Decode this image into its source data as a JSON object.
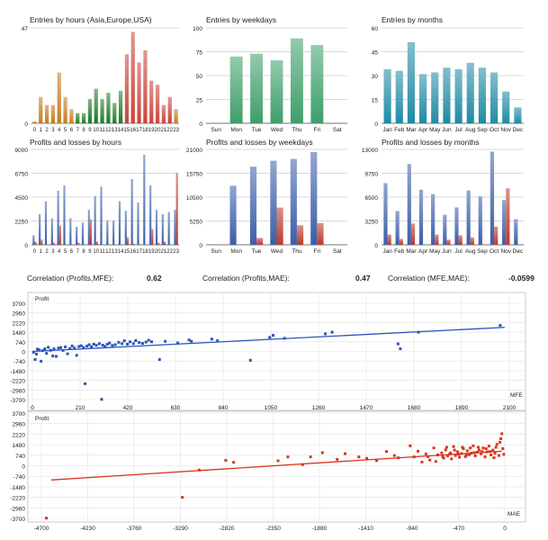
{
  "colors": {
    "grid": "#cccccc",
    "axis": "#555555",
    "text": "#222222",
    "frame": "#bfbfbf"
  },
  "correlation": {
    "items": [
      {
        "label": "Correlation (Profits,MFE):",
        "value": "0.62"
      },
      {
        "label": "Correlation (Profits,MAE):",
        "value": "0.47"
      },
      {
        "label": "Correlation (MFE,MAE):",
        "value": "-0.0599"
      }
    ]
  },
  "chart_data": [
    {
      "id": "entries-hours",
      "type": "bar",
      "title": "Entries by hours (Asia,Europe,USA)",
      "categories": [
        "0",
        "1",
        "2",
        "3",
        "4",
        "5",
        "6",
        "7",
        "8",
        "9",
        "10",
        "11",
        "12",
        "13",
        "14",
        "15",
        "16",
        "17",
        "18",
        "19",
        "20",
        "21",
        "22",
        "23"
      ],
      "values": [
        1,
        13,
        9,
        9,
        25,
        13,
        7,
        5,
        5,
        12,
        17,
        12,
        15,
        10,
        16,
        34,
        45,
        30,
        36,
        21,
        19,
        9,
        13,
        7
      ],
      "colors": [
        "#c77a1b",
        "#c77a1b",
        "#c77a1b",
        "#c77a1b",
        "#c77a1b",
        "#c77a1b",
        "#c77a1b",
        "#1e7a28",
        "#1e7a28",
        "#1e7a28",
        "#1e7a28",
        "#1e7a28",
        "#1e7a28",
        "#1e7a28",
        "#1e7a28",
        "#c9443a",
        "#c9443a",
        "#c9443a",
        "#c9443a",
        "#c9443a",
        "#c9443a",
        "#c9443a",
        "#c9443a",
        "#c77a1b"
      ],
      "yticks": [
        0,
        47
      ],
      "ylim": [
        0,
        47
      ]
    },
    {
      "id": "entries-weekdays",
      "type": "bar",
      "title": "Entries by weekdays",
      "categories": [
        "Sun",
        "Mon",
        "Tue",
        "Wed",
        "Thu",
        "Fri",
        "Sat"
      ],
      "values": [
        0,
        70,
        73,
        66,
        89,
        82,
        0
      ],
      "color": "#3d9e6a",
      "yticks": [
        0,
        25,
        50,
        75,
        100
      ],
      "ylim": [
        0,
        100
      ]
    },
    {
      "id": "entries-months",
      "type": "bar",
      "title": "Entries by months",
      "categories": [
        "Jan",
        "Feb",
        "Mar",
        "Apr",
        "May",
        "Jun",
        "Jul",
        "Aug",
        "Sep",
        "Oct",
        "Nov",
        "Dec"
      ],
      "values": [
        34,
        33,
        51,
        31,
        32,
        35,
        34,
        38,
        35,
        32,
        20,
        10
      ],
      "color": "#1f8aa4",
      "yticks": [
        0,
        15,
        30,
        45,
        60
      ],
      "ylim": [
        0,
        60
      ]
    },
    {
      "id": "pl-hours",
      "type": "bar",
      "title": "Profits and losses by hours",
      "categories": [
        "0",
        "1",
        "2",
        "3",
        "4",
        "5",
        "6",
        "7",
        "8",
        "9",
        "10",
        "11",
        "12",
        "13",
        "14",
        "15",
        "16",
        "17",
        "18",
        "19",
        "20",
        "21",
        "22",
        "23"
      ],
      "series": [
        {
          "name": "Profits",
          "color": "#3b5ea8",
          "values": [
            900,
            2900,
            4100,
            2500,
            5100,
            5600,
            2500,
            1700,
            2100,
            3300,
            4600,
            5500,
            2300,
            2300,
            4100,
            3200,
            6200,
            4000,
            8500,
            5600,
            3300,
            2900,
            3100,
            3300
          ]
        },
        {
          "name": "Losses",
          "color": "#b83a2c",
          "values": [
            300,
            500,
            0,
            200,
            1800,
            0,
            0,
            200,
            0,
            2400,
            300,
            0,
            0,
            0,
            0,
            700,
            100,
            0,
            0,
            1500,
            200,
            300,
            0,
            6800
          ]
        }
      ],
      "yticks": [
        0,
        2250,
        4500,
        6750,
        9000
      ],
      "ylim": [
        0,
        9000
      ]
    },
    {
      "id": "pl-weekdays",
      "type": "bar",
      "title": "Profits and losses by weekdays",
      "categories": [
        "Sun",
        "Mon",
        "Tue",
        "Wed",
        "Thu",
        "Fri",
        "Sat"
      ],
      "series": [
        {
          "name": "Profits",
          "color": "#3b5ea8",
          "values": [
            0,
            13000,
            17200,
            18500,
            18900,
            20400,
            0
          ]
        },
        {
          "name": "Losses",
          "color": "#b83a2c",
          "values": [
            0,
            0,
            1500,
            8200,
            4300,
            4800,
            0
          ]
        }
      ],
      "yticks": [
        0,
        5250,
        10500,
        15750,
        21000
      ],
      "ylim": [
        0,
        21000
      ]
    },
    {
      "id": "pl-months",
      "type": "bar",
      "title": "Profits and losses by months",
      "categories": [
        "Jan",
        "Feb",
        "Mar",
        "Apr",
        "May",
        "Jun",
        "Jul",
        "Aug",
        "Sep",
        "Oct",
        "Nov",
        "Dec"
      ],
      "series": [
        {
          "name": "Profits",
          "color": "#3b5ea8",
          "values": [
            8400,
            4600,
            11000,
            7500,
            6900,
            4100,
            5100,
            7400,
            6600,
            12700,
            6100,
            3500
          ]
        },
        {
          "name": "Losses",
          "color": "#b83a2c",
          "values": [
            1400,
            800,
            2900,
            0,
            1400,
            700,
            1300,
            1000,
            0,
            2500,
            7700,
            0
          ]
        }
      ],
      "yticks": [
        0,
        3250,
        6500,
        9750,
        13000
      ],
      "ylim": [
        0,
        13000
      ]
    },
    {
      "id": "scatter-mfe",
      "type": "scatter",
      "ylabel": "Profit",
      "xlabel": "MFE",
      "color": "#2a55b8",
      "xticks": [
        0,
        210,
        420,
        630,
        840,
        1050,
        1260,
        1470,
        1680,
        1890,
        2100
      ],
      "yticks": [
        3700,
        2960,
        2220,
        1480,
        740,
        0,
        -740,
        -1480,
        -2220,
        -2960,
        -3700
      ],
      "xlim": [
        0,
        2100
      ],
      "ylim": [
        -3700,
        3700
      ],
      "trend": [
        [
          0,
          0
        ],
        [
          2080,
          1850
        ]
      ],
      "points": [
        [
          5,
          -60
        ],
        [
          12,
          -620
        ],
        [
          18,
          -200
        ],
        [
          22,
          180
        ],
        [
          30,
          120
        ],
        [
          38,
          -750
        ],
        [
          45,
          60
        ],
        [
          55,
          200
        ],
        [
          62,
          -150
        ],
        [
          70,
          320
        ],
        [
          80,
          90
        ],
        [
          90,
          -350
        ],
        [
          95,
          200
        ],
        [
          105,
          -380
        ],
        [
          115,
          260
        ],
        [
          125,
          300
        ],
        [
          135,
          80
        ],
        [
          145,
          350
        ],
        [
          155,
          -180
        ],
        [
          165,
          220
        ],
        [
          175,
          420
        ],
        [
          185,
          260
        ],
        [
          195,
          -300
        ],
        [
          205,
          380
        ],
        [
          215,
          440
        ],
        [
          225,
          300
        ],
        [
          232,
          -2480
        ],
        [
          240,
          410
        ],
        [
          250,
          520
        ],
        [
          260,
          350
        ],
        [
          270,
          560
        ],
        [
          282,
          470
        ],
        [
          295,
          600
        ],
        [
          305,
          -3680
        ],
        [
          310,
          480
        ],
        [
          320,
          380
        ],
        [
          330,
          560
        ],
        [
          340,
          650
        ],
        [
          352,
          460
        ],
        [
          365,
          520
        ],
        [
          380,
          700
        ],
        [
          395,
          600
        ],
        [
          405,
          820
        ],
        [
          418,
          560
        ],
        [
          430,
          740
        ],
        [
          445,
          600
        ],
        [
          455,
          830
        ],
        [
          470,
          680
        ],
        [
          485,
          620
        ],
        [
          500,
          720
        ],
        [
          512,
          860
        ],
        [
          525,
          740
        ],
        [
          560,
          -620
        ],
        [
          585,
          780
        ],
        [
          640,
          660
        ],
        [
          690,
          880
        ],
        [
          700,
          780
        ],
        [
          790,
          950
        ],
        [
          815,
          820
        ],
        [
          960,
          -680
        ],
        [
          1045,
          1080
        ],
        [
          1060,
          1240
        ],
        [
          1110,
          1010
        ],
        [
          1290,
          1350
        ],
        [
          1320,
          1480
        ],
        [
          1610,
          580
        ],
        [
          1620,
          200
        ],
        [
          1700,
          1480
        ],
        [
          2060,
          2000
        ]
      ]
    },
    {
      "id": "scatter-mae",
      "type": "scatter",
      "ylabel": "Profit",
      "xlabel": "MAE",
      "color": "#d8351d",
      "xticks": [
        -4700,
        -4230,
        -3760,
        -3290,
        -2820,
        -2350,
        -1880,
        -1410,
        -940,
        -470,
        0
      ],
      "yticks": [
        3700,
        2960,
        2220,
        1480,
        740,
        0,
        -740,
        -1480,
        -2220,
        -2960,
        -3700
      ],
      "xlim": [
        -4700,
        0
      ],
      "ylim": [
        -3700,
        3700
      ],
      "trend": [
        [
          -4600,
          -1000
        ],
        [
          -30,
          1020
        ]
      ],
      "points": [
        [
          -4650,
          -3680
        ],
        [
          -3270,
          -2220
        ],
        [
          -3100,
          -300
        ],
        [
          -2830,
          380
        ],
        [
          -2750,
          240
        ],
        [
          -2300,
          350
        ],
        [
          -2200,
          620
        ],
        [
          -2050,
          80
        ],
        [
          -1970,
          620
        ],
        [
          -1850,
          920
        ],
        [
          -1700,
          450
        ],
        [
          -1620,
          850
        ],
        [
          -1480,
          620
        ],
        [
          -1400,
          520
        ],
        [
          -1300,
          360
        ],
        [
          -1200,
          1000
        ],
        [
          -1120,
          720
        ],
        [
          -1080,
          560
        ],
        [
          -960,
          1400
        ],
        [
          -920,
          620
        ],
        [
          -880,
          1020
        ],
        [
          -840,
          260
        ],
        [
          -800,
          830
        ],
        [
          -780,
          640
        ],
        [
          -760,
          400
        ],
        [
          -720,
          1250
        ],
        [
          -700,
          300
        ],
        [
          -680,
          760
        ],
        [
          -640,
          900
        ],
        [
          -620,
          540
        ],
        [
          -600,
          1110
        ],
        [
          -580,
          700
        ],
        [
          -560,
          820
        ],
        [
          -540,
          480
        ],
        [
          -520,
          1350
        ],
        [
          -500,
          720
        ],
        [
          -480,
          980
        ],
        [
          -460,
          600
        ],
        [
          -440,
          860
        ],
        [
          -420,
          1200
        ],
        [
          -400,
          640
        ],
        [
          -380,
          1050
        ],
        [
          -360,
          780
        ],
        [
          -340,
          880
        ],
        [
          -320,
          1400
        ],
        [
          -300,
          700
        ],
        [
          -280,
          960
        ],
        [
          -260,
          1100
        ],
        [
          -240,
          840
        ],
        [
          -220,
          1250
        ],
        [
          -200,
          620
        ],
        [
          -180,
          980
        ],
        [
          -160,
          1380
        ],
        [
          -140,
          760
        ],
        [
          -120,
          1100
        ],
        [
          -100,
          880
        ],
        [
          -80,
          1500
        ],
        [
          -60,
          720
        ],
        [
          -40,
          1900
        ],
        [
          -20,
          1200
        ],
        [
          -10,
          800
        ],
        [
          -30,
          2250
        ],
        [
          -50,
          1650
        ],
        [
          -90,
          1300
        ],
        [
          -110,
          560
        ],
        [
          -150,
          1000
        ],
        [
          -190,
          1200
        ],
        [
          -230,
          1000
        ],
        [
          -270,
          1300
        ],
        [
          -310,
          920
        ],
        [
          -350,
          1250
        ],
        [
          -390,
          740
        ],
        [
          -430,
          1300
        ],
        [
          -470,
          820
        ],
        [
          -510,
          1100
        ],
        [
          -550,
          900
        ],
        [
          -590,
          1300
        ],
        [
          -630,
          640
        ]
      ]
    }
  ]
}
